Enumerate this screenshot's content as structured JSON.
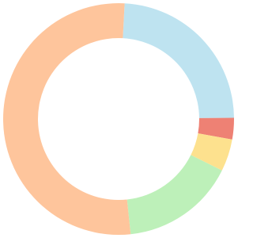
{
  "chart_data": {
    "type": "donut",
    "categories": [
      null,
      null,
      null,
      null,
      null
    ],
    "values": [
      24,
      3,
      4.5,
      16,
      52.5
    ],
    "colors": [
      "#bee3f0",
      "#ee8174",
      "#fde18e",
      "#bdf0b9",
      "#fec59c"
    ]
  }
}
